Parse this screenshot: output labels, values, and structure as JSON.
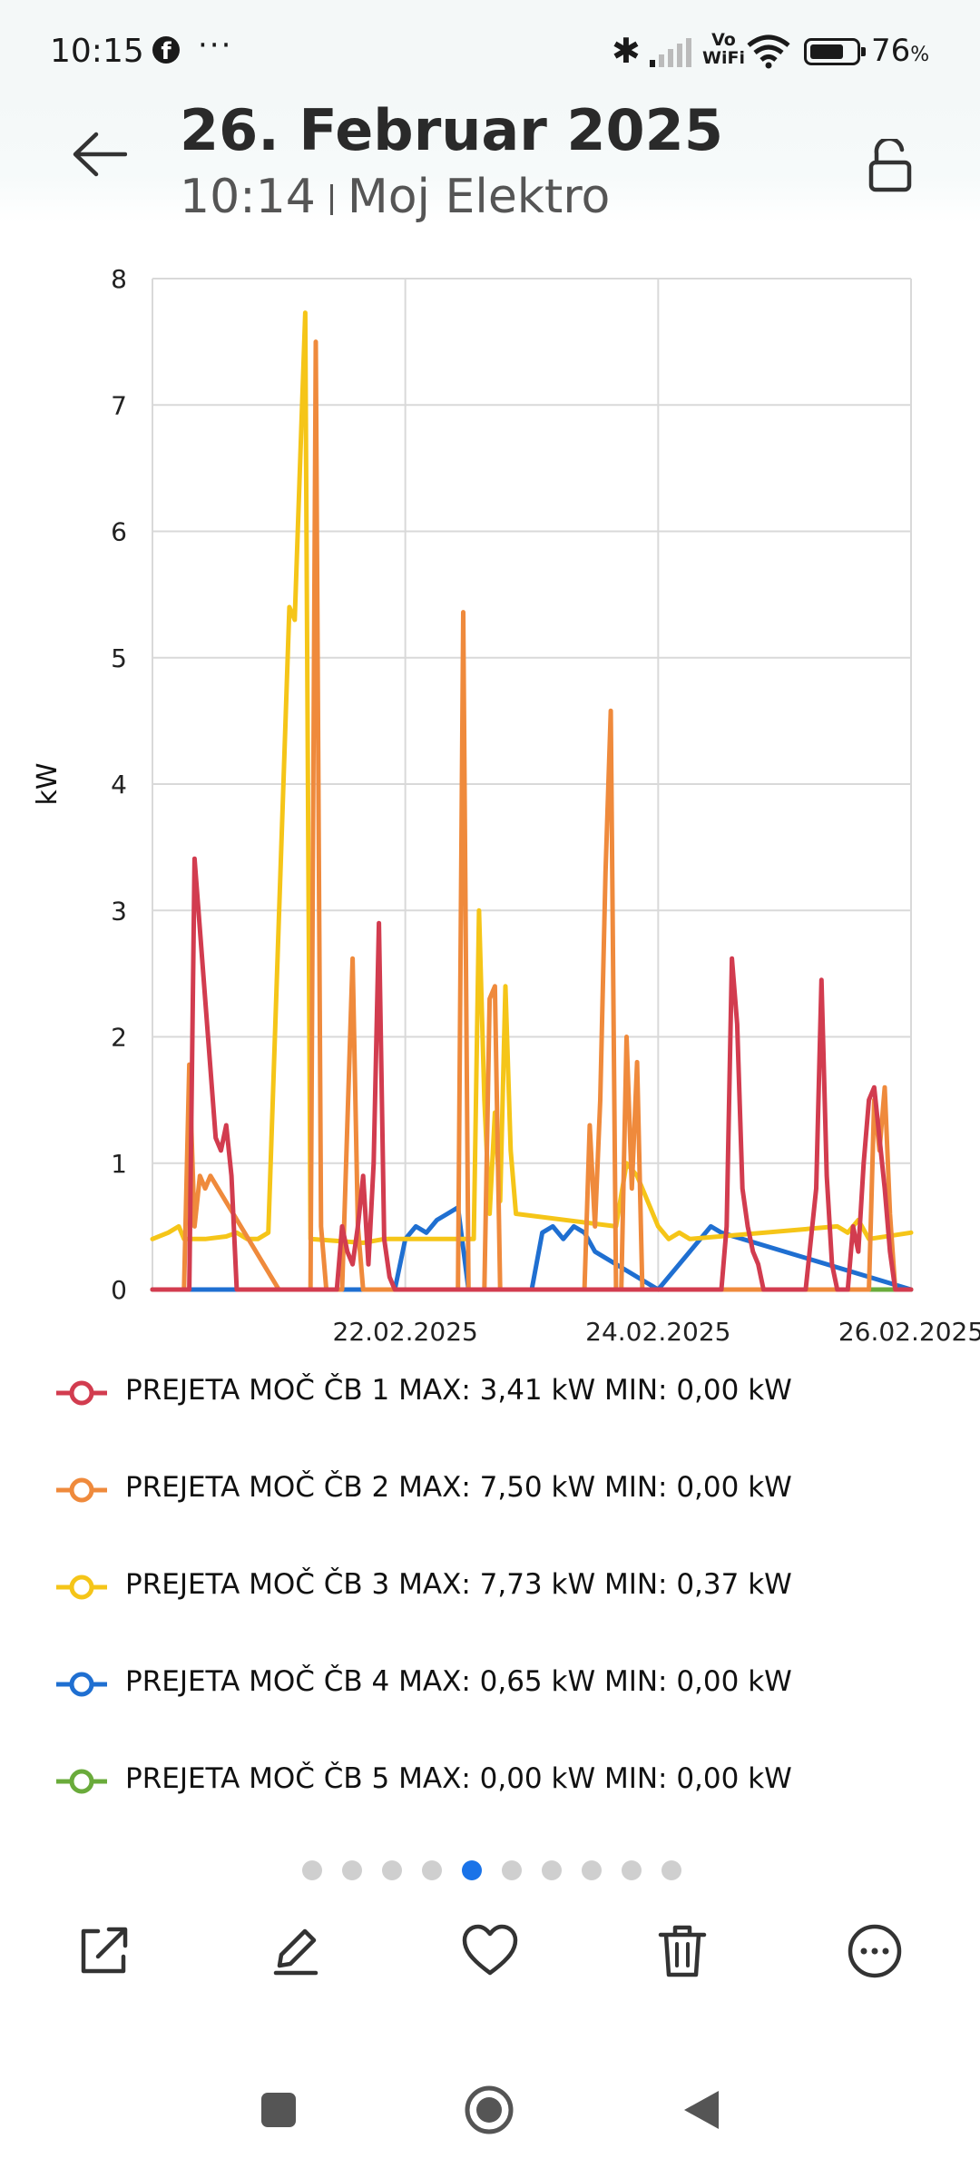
{
  "status_bar": {
    "time": "10:15",
    "notification_icons": [
      "facebook-icon",
      "more-dots-icon"
    ],
    "system_icons": [
      "bluetooth-icon",
      "signal-icon",
      "vowifi-icon",
      "wifi-icon",
      "battery-icon"
    ],
    "vowifi_top": "Vo",
    "vowifi_bottom": "WiFi",
    "battery_percent": "76",
    "battery_percent_suffix": "%",
    "battery_level": 0.76
  },
  "header": {
    "date": "26. Februar 2025",
    "time": "10:14",
    "album": "Moj Elektro"
  },
  "chart_data": {
    "type": "line",
    "ylabel": "kW",
    "ylim": [
      0,
      8
    ],
    "yticks": [
      "0",
      "1",
      "2",
      "3",
      "4",
      "5",
      "6",
      "7",
      "8"
    ],
    "xlim": [
      "20.02.2025",
      "26.02.2025"
    ],
    "xticks": [
      "22.02.2025",
      "24.02.2025",
      "26.02.2025"
    ],
    "grid": true,
    "series": [
      {
        "name": "PREJETA MOČ ČB 1",
        "color": "#d23c4f",
        "max": "3,41",
        "min": "0,00",
        "x": [
          "20.02.2025 00:00",
          "20.02.2025 06:00",
          "20.02.2025 07:00",
          "20.02.2025 08:00",
          "20.02.2025 12:00",
          "20.02.2025 13:00",
          "20.02.2025 14:00",
          "20.02.2025 15:00",
          "20.02.2025 16:00",
          "20.02.2025 17:00",
          "20.02.2025 18:00",
          "20.02.2025 19:00",
          "20.02.2025 20:00",
          "21.02.2025 00:00",
          "21.02.2025 11:00",
          "21.02.2025 12:00",
          "21.02.2025 13:00",
          "21.02.2025 14:00",
          "21.02.2025 15:00",
          "21.02.2025 16:00",
          "21.02.2025 17:00",
          "21.02.2025 18:00",
          "21.02.2025 19:00",
          "21.02.2025 20:00",
          "21.02.2025 21:00",
          "21.02.2025 22:00",
          "22.02.2025 00:00",
          "23.02.2025 00:00",
          "24.02.2025 00:00",
          "24.02.2025 12:00",
          "24.02.2025 13:00",
          "24.02.2025 14:00",
          "24.02.2025 15:00",
          "24.02.2025 16:00",
          "24.02.2025 17:00",
          "24.02.2025 18:00",
          "24.02.2025 19:00",
          "24.02.2025 20:00",
          "24.02.2025 21:00",
          "24.02.2025 22:00",
          "25.02.2025 00:00",
          "25.02.2025 04:00",
          "25.02.2025 05:00",
          "25.02.2025 06:00",
          "25.02.2025 07:00",
          "25.02.2025 08:00",
          "25.02.2025 09:00",
          "25.02.2025 10:00",
          "25.02.2025 11:00",
          "25.02.2025 12:00",
          "25.02.2025 13:00",
          "25.02.2025 14:00",
          "25.02.2025 15:00",
          "25.02.2025 16:00",
          "25.02.2025 17:00",
          "25.02.2025 18:00",
          "25.02.2025 19:00",
          "25.02.2025 20:00",
          "25.02.2025 21:00",
          "25.02.2025 22:00",
          "26.02.2025 00:00"
        ],
        "values": [
          0,
          0,
          0,
          3.41,
          1.2,
          1.1,
          1.3,
          0.9,
          0,
          0,
          0,
          0,
          0,
          0,
          0,
          0.5,
          0.3,
          0.2,
          0.5,
          0.9,
          0.2,
          1.0,
          2.9,
          0.4,
          0.1,
          0,
          0,
          0,
          0,
          0,
          0.5,
          2.62,
          2.1,
          0.8,
          0.5,
          0.3,
          0.2,
          0,
          0,
          0,
          0,
          0,
          0.4,
          0.8,
          2.45,
          0.9,
          0.2,
          0,
          0,
          0,
          0.5,
          0.3,
          1.0,
          1.5,
          1.6,
          1.2,
          0.8,
          0.3,
          0,
          0,
          0
        ]
      },
      {
        "name": "PREJETA MOČ ČB 2",
        "color": "#ef8a3c",
        "max": "7,50",
        "min": "0,00",
        "x": [
          "20.02.2025 00:00",
          "20.02.2025 06:00",
          "20.02.2025 07:00",
          "20.02.2025 08:00",
          "20.02.2025 09:00",
          "20.02.2025 10:00",
          "20.02.2025 11:00",
          "21.02.2025 00:00",
          "21.02.2025 05:00",
          "21.02.2025 06:00",
          "21.02.2025 07:00",
          "21.02.2025 08:00",
          "21.02.2025 09:00",
          "21.02.2025 10:00",
          "21.02.2025 12:00",
          "21.02.2025 14:00",
          "21.02.2025 15:00",
          "21.02.2025 16:00",
          "21.02.2025 17:00",
          "21.02.2025 18:00",
          "21.02.2025 19:00",
          "21.02.2025 20:00",
          "22.02.2025 00:00",
          "22.02.2025 08:00",
          "22.02.2025 09:00",
          "22.02.2025 10:00",
          "22.02.2025 11:00",
          "22.02.2025 12:00",
          "22.02.2025 14:00",
          "22.02.2025 15:00",
          "22.02.2025 16:00",
          "22.02.2025 17:00",
          "22.02.2025 18:00",
          "22.02.2025 20:00",
          "23.02.2025 00:00",
          "23.02.2025 10:00",
          "23.02.2025 11:00",
          "23.02.2025 12:00",
          "23.02.2025 13:00",
          "23.02.2025 14:00",
          "23.02.2025 15:00",
          "23.02.2025 16:00",
          "23.02.2025 17:00",
          "23.02.2025 18:00",
          "23.02.2025 19:00",
          "23.02.2025 20:00",
          "23.02.2025 21:00",
          "24.02.2025 00:00",
          "24.02.2025 18:00",
          "24.02.2025 19:00",
          "24.02.2025 20:00",
          "25.02.2025 00:00",
          "25.02.2025 16:00",
          "25.02.2025 17:00",
          "25.02.2025 18:00",
          "25.02.2025 19:00",
          "25.02.2025 20:00",
          "25.02.2025 21:00",
          "26.02.2025 00:00"
        ],
        "values": [
          0,
          0,
          1.78,
          0.5,
          0.9,
          0.8,
          0.9,
          0,
          0,
          0,
          7.5,
          0.5,
          0,
          0,
          0,
          2.62,
          0.5,
          0,
          0,
          0,
          0,
          0,
          0,
          0,
          0,
          0,
          5.36,
          0,
          0,
          0,
          2.3,
          2.4,
          0,
          0,
          0,
          0,
          1.3,
          0.5,
          1.5,
          3.3,
          4.58,
          0,
          0,
          2.0,
          0.8,
          1.8,
          0,
          0,
          0,
          0,
          0,
          0,
          0,
          1.5,
          1.1,
          1.6,
          0.6,
          0,
          0
        ]
      },
      {
        "name": "PREJETA MOČ ČB 3",
        "color": "#f5c518",
        "max": "7,73",
        "min": "0,37",
        "x": [
          "20.02.2025 00:00",
          "20.02.2025 03:00",
          "20.02.2025 05:00",
          "20.02.2025 06:00",
          "20.02.2025 10:00",
          "20.02.2025 14:00",
          "20.02.2025 16:00",
          "20.02.2025 18:00",
          "20.02.2025 20:00",
          "20.02.2025 22:00",
          "21.02.2025 02:00",
          "21.02.2025 03:00",
          "21.02.2025 05:00",
          "21.02.2025 06:00",
          "21.02.2025 16:00",
          "21.02.2025 20:00",
          "22.02.2025 00:00",
          "22.02.2025 13:00",
          "22.02.2025 14:00",
          "22.02.2025 15:00",
          "22.02.2025 16:00",
          "22.02.2025 17:00",
          "22.02.2025 18:00",
          "22.02.2025 19:00",
          "22.02.2025 20:00",
          "22.02.2025 21:00",
          "23.02.2025 16:00",
          "23.02.2025 18:00",
          "23.02.2025 20:00",
          "24.02.2025 00:00",
          "24.02.2025 02:00",
          "24.02.2025 04:00",
          "24.02.2025 06:00",
          "25.02.2025 10:00",
          "25.02.2025 12:00",
          "25.02.2025 14:00",
          "25.02.2025 16:00",
          "26.02.2025 00:00"
        ],
        "values": [
          0.4,
          0.45,
          0.5,
          0.4,
          0.4,
          0.42,
          0.45,
          0.4,
          0.4,
          0.45,
          5.4,
          5.3,
          7.73,
          0.4,
          0.37,
          0.4,
          0.4,
          0.4,
          3.0,
          1.5,
          0.6,
          1.4,
          0.7,
          2.4,
          1.1,
          0.6,
          0.5,
          1.0,
          0.9,
          0.5,
          0.4,
          0.45,
          0.4,
          0.5,
          0.45,
          0.55,
          0.4,
          0.45
        ]
      },
      {
        "name": "PREJETA MOČ ČB 4",
        "color": "#1f6fd1",
        "max": "0,65",
        "min": "0,00",
        "x": [
          "20.02.2025 00:00",
          "21.02.2025 22:00",
          "22.02.2025 00:00",
          "22.02.2025 02:00",
          "22.02.2025 04:00",
          "22.02.2025 06:00",
          "22.02.2025 08:00",
          "22.02.2025 10:00",
          "22.02.2025 12:00",
          "23.02.2025 00:00",
          "23.02.2025 02:00",
          "23.02.2025 04:00",
          "23.02.2025 06:00",
          "23.02.2025 08:00",
          "23.02.2025 10:00",
          "23.02.2025 12:00",
          "24.02.2025 00:00",
          "24.02.2025 10:00",
          "24.02.2025 12:00",
          "26.02.2025 00:00"
        ],
        "values": [
          0,
          0,
          0.4,
          0.5,
          0.45,
          0.55,
          0.6,
          0.65,
          0,
          0,
          0.45,
          0.5,
          0.4,
          0.5,
          0.45,
          0.3,
          0,
          0.5,
          0.45,
          0
        ]
      },
      {
        "name": "PREJETA MOČ ČB 5",
        "color": "#6aab3b",
        "max": "0,00",
        "min": "0,00",
        "x": [
          "20.02.2025 00:00",
          "26.02.2025 00:00"
        ],
        "values": [
          0,
          0
        ]
      }
    ]
  },
  "legend": {
    "max_label": "MAX:",
    "min_label": "MIN:",
    "unit": "kW"
  },
  "pager": {
    "count": 10,
    "active_index": 4
  },
  "toolbar": {
    "actions": [
      "share-icon",
      "edit-icon",
      "favorite-icon",
      "delete-icon",
      "more-icon"
    ]
  },
  "nav_bar": {
    "buttons": [
      "recents-icon",
      "home-icon",
      "back-icon"
    ]
  }
}
